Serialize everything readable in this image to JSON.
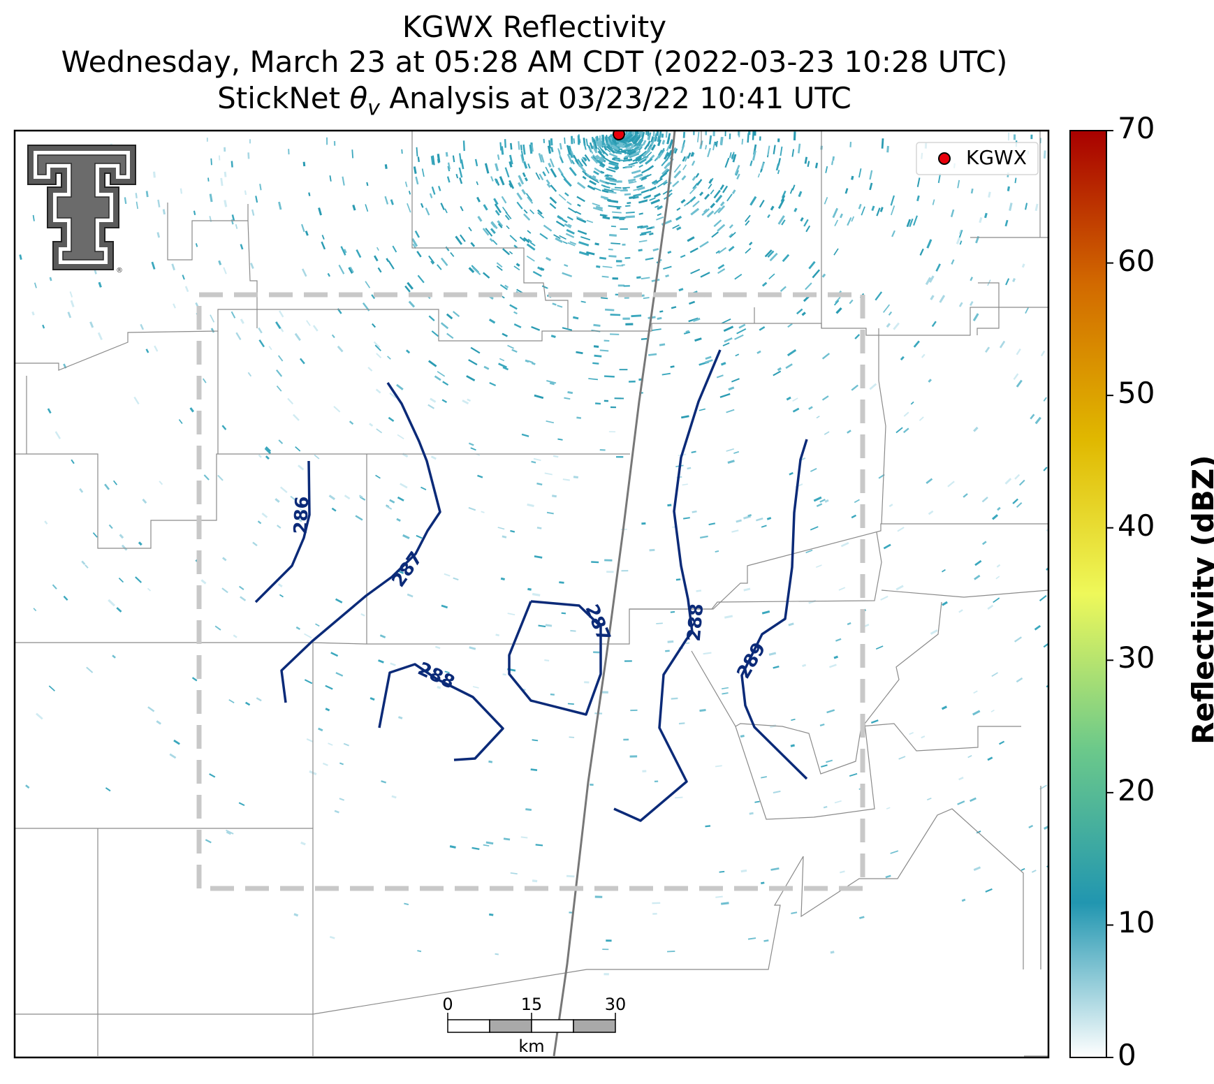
{
  "title": {
    "line1": "KGWX Reflectivity",
    "line2": "Wednesday, March 23 at 05:28 AM CDT (2022-03-23 10:28 UTC)",
    "line3_prefix": "StickNet ",
    "line3_symbol": "θ",
    "line3_subscript": "v",
    "line3_suffix": " Analysis at 03/23/22 10:41 UTC"
  },
  "legend": {
    "label": "KGWX",
    "marker_color": "#e8000b"
  },
  "colorbar": {
    "label": "Reflectivity (dBZ)",
    "min": 0,
    "max": 70,
    "ticks": [
      "0",
      "10",
      "20",
      "30",
      "40",
      "50",
      "60",
      "70"
    ],
    "colors": [
      "#ffffff",
      "#2196b0",
      "#6cc98a",
      "#eef85a",
      "#e0b800",
      "#d26a00",
      "#a80000"
    ]
  },
  "contours": {
    "color": "#0b2a78",
    "labels": [
      "286",
      "287",
      "287",
      "288",
      "288",
      "289"
    ]
  },
  "scale_bar": {
    "ticks": [
      "0",
      "15",
      "30"
    ],
    "unit": "km"
  },
  "logo": {
    "name": "Texas Tech Double T",
    "trademark": "®"
  },
  "colors": {
    "analysis_box": "#c8c8c8",
    "county_lines": "#888888",
    "radar_echo": "#2a9bb2"
  }
}
